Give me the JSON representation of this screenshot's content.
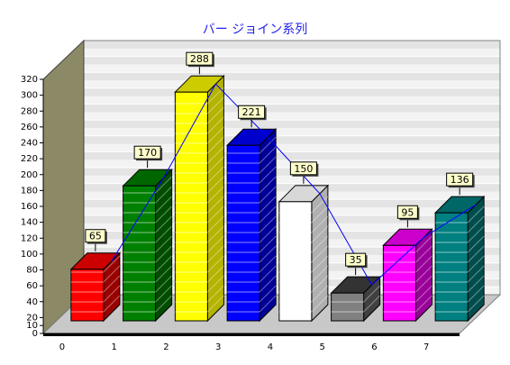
{
  "chart_data": {
    "type": "bar",
    "title": "バー ジョイン系列",
    "categories": [
      "0",
      "1",
      "2",
      "3",
      "4",
      "5",
      "6",
      "7"
    ],
    "values": [
      65,
      170,
      288,
      221,
      150,
      35,
      95,
      136
    ],
    "ylim": [
      0,
      320
    ],
    "yticks": [
      0,
      10,
      20,
      40,
      60,
      80,
      100,
      120,
      140,
      160,
      180,
      200,
      220,
      240,
      260,
      280,
      300,
      320
    ],
    "bar_colors": [
      "#ff0000",
      "#008000",
      "#ffff00",
      "#0000ff",
      "#ffffff",
      "#808080",
      "#ff00ff",
      "#008080"
    ],
    "bar_side_colors": [
      "#990000",
      "#004d00",
      "#b3b300",
      "#000099",
      "#b0b0b0",
      "#404040",
      "#990099",
      "#004d4d"
    ],
    "bar_top_colors": [
      "#cc0000",
      "#006600",
      "#cccc00",
      "#0000cc",
      "#d8d8d8",
      "#333333",
      "#cc00cc",
      "#006666"
    ],
    "join_line_color": "#0000ff",
    "wall_color": "#8c8a66",
    "floor_color": "#c8c8c8",
    "grid": true,
    "three_d": true,
    "data_labels": true
  }
}
